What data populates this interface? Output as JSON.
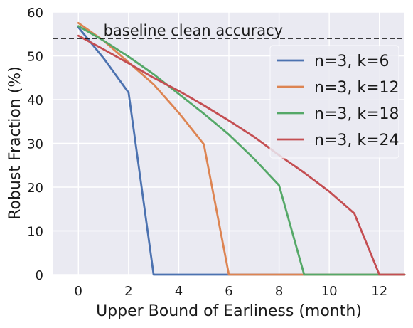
{
  "chart_data": {
    "type": "line",
    "title": "",
    "xlabel": "Upper Bound of Earliness (month)",
    "ylabel": "Robust Fraction (%)",
    "xlim": [
      -1,
      13
    ],
    "ylim": [
      0,
      60
    ],
    "xticks": [
      0,
      2,
      4,
      6,
      8,
      10,
      12
    ],
    "yticks": [
      0,
      10,
      20,
      30,
      40,
      50,
      60
    ],
    "grid": true,
    "background": "#eaeaf2",
    "legend_position": "upper-right",
    "reference_line": {
      "y": 54,
      "label": "baseline clean accuracy",
      "style": "dashed",
      "color": "#000000"
    },
    "series": [
      {
        "name": "n=3, k=6",
        "color": "#4c72b0",
        "x": [
          0,
          1,
          2,
          3,
          4,
          5,
          6,
          7,
          8,
          9,
          10,
          11,
          12,
          13
        ],
        "y": [
          56.5,
          49.5,
          41.6,
          0,
          0,
          0,
          0,
          0,
          0,
          0,
          0,
          0,
          0,
          0
        ]
      },
      {
        "name": "n=3, k=12",
        "color": "#dd8452",
        "x": [
          0,
          1,
          2,
          3,
          4,
          5,
          6,
          7,
          8,
          9,
          10,
          11,
          12,
          13
        ],
        "y": [
          57.5,
          53.5,
          48.5,
          43.5,
          37,
          29.8,
          0,
          0,
          0,
          0,
          0,
          0,
          0,
          0
        ]
      },
      {
        "name": "n=3, k=18",
        "color": "#55a868",
        "x": [
          0,
          1,
          2,
          3,
          4,
          5,
          6,
          7,
          8,
          9,
          10,
          11,
          12,
          13
        ],
        "y": [
          56.8,
          53.5,
          49.8,
          45.8,
          41.3,
          36.8,
          32,
          26.5,
          20.4,
          0,
          0,
          0,
          0,
          0
        ]
      },
      {
        "name": "n=3, k=24",
        "color": "#c44e52",
        "x": [
          0,
          1,
          2,
          3,
          4,
          5,
          6,
          7,
          8,
          9,
          10,
          11,
          12,
          13
        ],
        "y": [
          54.6,
          51.5,
          48.3,
          45,
          42,
          38.7,
          35.2,
          31.5,
          27.3,
          23.3,
          19,
          14,
          0,
          0
        ]
      }
    ]
  }
}
